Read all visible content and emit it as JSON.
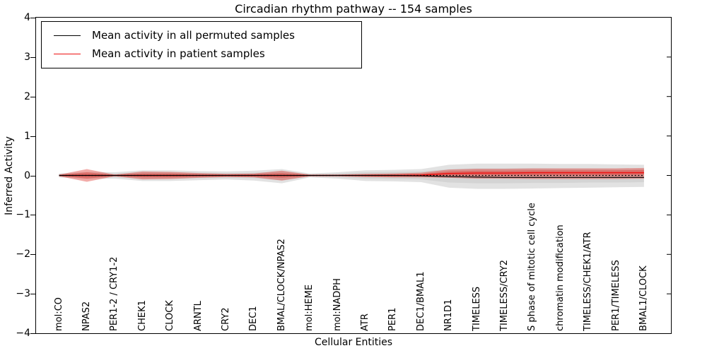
{
  "chart_data": {
    "type": "line",
    "title": "Circadian rhythm pathway -- 154 samples",
    "xlabel": "Cellular Entities",
    "ylabel": "Inferred Activity",
    "ylim": [
      -4,
      4
    ],
    "ytick_labels": [
      "4",
      "3",
      "2",
      "1",
      "0",
      "−1",
      "−2",
      "−3",
      "−4"
    ],
    "ytick_values": [
      4,
      3,
      2,
      1,
      0,
      -1,
      -2,
      -3,
      -4
    ],
    "grid": false,
    "legend_position": "upper left",
    "categories": [
      "mol:CO",
      "NPAS2",
      "PER1-2 / CRY1-2",
      "CHEK1",
      "CLOCK",
      "ARNTL",
      "CRY2",
      "DEC1",
      "BMAL/CLOCK/NPAS2",
      "mol:HEME",
      "mol:NADPH",
      "ATR",
      "PER1",
      "DEC1/BMAL1",
      "NR1D1",
      "TIMELESS",
      "TIMELESS/CRY2",
      "S phase of mitotic cell cycle",
      "chromatin modification",
      "TIMELESS/CHEK1/ATR",
      "PER1/TIMELESS",
      "BMAL1/CLOCK"
    ],
    "series": [
      {
        "name": "Mean activity in all permuted samples",
        "color": "#000000",
        "style": "solid",
        "values": [
          0,
          0,
          0,
          0,
          0,
          0,
          0,
          0,
          0,
          0,
          0,
          0,
          0,
          -0.01,
          -0.03,
          -0.04,
          -0.05,
          -0.05,
          -0.05,
          -0.05,
          -0.05,
          -0.05
        ]
      },
      {
        "name": "Mean activity in patient samples",
        "color": "#ee1111",
        "style": "solid",
        "values": [
          0,
          0,
          0,
          0,
          0,
          0,
          0,
          0,
          0,
          0,
          0,
          0,
          0,
          0.01,
          0.05,
          0.06,
          0.06,
          0.07,
          0.07,
          0.07,
          0.07,
          0.07
        ]
      }
    ],
    "zero_line": {
      "value": 0,
      "style": "dotted",
      "color": "#000000"
    },
    "bands": [
      {
        "name": "permuted-range-outer",
        "color": "rgba(150,150,150,0.28)",
        "hi": [
          0.05,
          0.09,
          0.08,
          0.13,
          0.13,
          0.11,
          0.1,
          0.12,
          0.16,
          0.05,
          0.08,
          0.13,
          0.14,
          0.16,
          0.27,
          0.3,
          0.3,
          0.3,
          0.29,
          0.29,
          0.28,
          0.27
        ],
        "lo": [
          -0.05,
          -0.09,
          -0.08,
          -0.14,
          -0.14,
          -0.12,
          -0.1,
          -0.13,
          -0.2,
          -0.05,
          -0.08,
          -0.14,
          -0.15,
          -0.17,
          -0.31,
          -0.34,
          -0.34,
          -0.33,
          -0.32,
          -0.31,
          -0.3,
          -0.29
        ]
      },
      {
        "name": "permuted-range-inner",
        "color": "rgba(150,150,150,0.18)",
        "hi": [
          0.03,
          0.05,
          0.05,
          0.08,
          0.08,
          0.07,
          0.06,
          0.07,
          0.1,
          0.03,
          0.05,
          0.08,
          0.09,
          0.1,
          0.16,
          0.18,
          0.18,
          0.18,
          0.17,
          0.17,
          0.16,
          0.16
        ],
        "lo": [
          -0.03,
          -0.05,
          -0.05,
          -0.08,
          -0.08,
          -0.07,
          -0.06,
          -0.07,
          -0.12,
          -0.03,
          -0.05,
          -0.08,
          -0.09,
          -0.1,
          -0.18,
          -0.2,
          -0.2,
          -0.19,
          -0.19,
          -0.18,
          -0.18,
          -0.17
        ]
      },
      {
        "name": "patient-range-outer",
        "color": "rgba(222,45,38,0.40)",
        "hi": [
          0.02,
          0.16,
          0.02,
          0.1,
          0.09,
          0.06,
          0.04,
          0.05,
          0.12,
          0.02,
          0.02,
          0.04,
          0.05,
          0.07,
          0.15,
          0.17,
          0.17,
          0.18,
          0.18,
          0.18,
          0.18,
          0.19
        ],
        "lo": [
          -0.02,
          -0.16,
          -0.02,
          -0.1,
          -0.09,
          -0.06,
          -0.04,
          -0.05,
          -0.13,
          -0.02,
          -0.02,
          -0.04,
          -0.05,
          -0.05,
          -0.06,
          -0.08,
          -0.08,
          -0.09,
          -0.09,
          -0.09,
          -0.09,
          -0.08
        ]
      },
      {
        "name": "patient-range-inner",
        "color": "rgba(222,45,38,0.35)",
        "hi": [
          0.01,
          0.08,
          0.01,
          0.05,
          0.05,
          0.03,
          0.02,
          0.03,
          0.06,
          0.01,
          0.01,
          0.02,
          0.03,
          0.04,
          0.1,
          0.12,
          0.12,
          0.13,
          0.13,
          0.13,
          0.13,
          0.14
        ],
        "lo": [
          -0.01,
          -0.08,
          -0.01,
          -0.05,
          -0.05,
          -0.03,
          -0.02,
          -0.03,
          -0.06,
          -0.01,
          -0.01,
          -0.02,
          -0.03,
          -0.02,
          0.0,
          0.01,
          0.01,
          0.01,
          0.01,
          0.01,
          0.01,
          0.02
        ]
      }
    ],
    "legend": [
      {
        "label": "Mean activity in all permuted samples",
        "color": "#000000"
      },
      {
        "label": "Mean activity in patient samples",
        "color": "#ee1111"
      }
    ]
  }
}
